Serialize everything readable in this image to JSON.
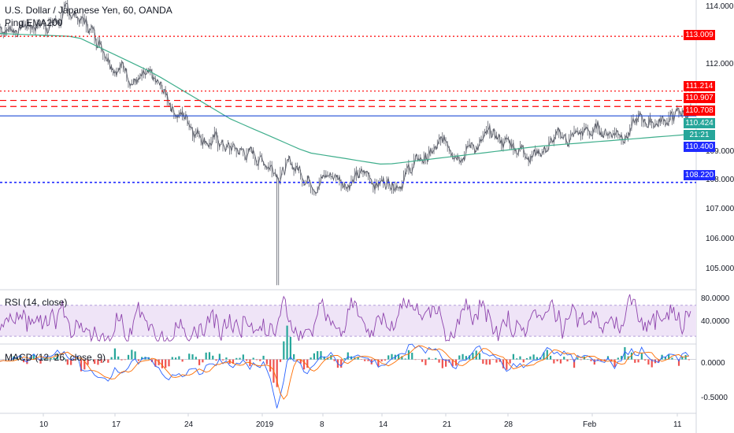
{
  "header": {
    "symbol_title": "U.S. Dollar / Japanese Yen, 60, OANDA",
    "ema_label": "Ping EMA200",
    "rsi_label": "RSI (14, close)",
    "macd_label": "MACD (12, 26, close, 9)"
  },
  "price_axis": {
    "ticks": [
      "114.000",
      "113.000",
      "112.000",
      "111.000",
      "110.000",
      "109.000",
      "108.000",
      "107.000",
      "106.000",
      "105.000"
    ]
  },
  "tags": {
    "t1": "113.009",
    "t2": "111.214",
    "t3": "110.907",
    "t4": "110.708",
    "t5": "110.424",
    "t6": "21:21",
    "t7": "110.400",
    "t8": "108.220"
  },
  "rsi_axis": {
    "ticks": [
      "80.0000",
      "40.0000"
    ]
  },
  "macd_axis": {
    "ticks": [
      "0.0000",
      "-0.5000"
    ]
  },
  "time_axis": {
    "labels": [
      "10",
      "17",
      "24",
      "2019",
      "8",
      "14",
      "21",
      "28",
      "Feb",
      "11"
    ]
  },
  "colors": {
    "red_level": "#ff0000",
    "blue_level": "#1f2bff",
    "price_line": "#1f4bd6",
    "ema": "#3fae8c",
    "rsi": "#8e44ad",
    "macd_line": "#2962ff",
    "signal_line": "#ff6d00",
    "hist_pos": "#26a69a",
    "hist_neg": "#ef5350"
  },
  "chart_data": [
    {
      "type": "line",
      "name_shown": "U.S. Dollar / Japanese Yen, 60, OANDA",
      "x": [
        "10",
        "17",
        "24",
        "2019",
        "8",
        "14",
        "21",
        "28",
        "Feb",
        "11"
      ],
      "series": [
        {
          "name": "",
          "values": [
            113.3,
            113.7,
            111.2,
            109.3,
            108.6,
            108.3,
            109.6,
            109.4,
            110.0,
            110.5
          ]
        },
        {
          "name": "Ping EMA200",
          "values": [
            113.1,
            113.0,
            111.8,
            110.3,
            109.2,
            108.8,
            109.1,
            109.4,
            109.6,
            109.8
          ]
        }
      ],
      "levels": [
        113.009,
        111.214,
        110.907,
        110.708,
        110.4,
        108.22
      ],
      "ylim": [
        104.7,
        114.2
      ]
    },
    {
      "type": "line",
      "name_shown": "RSI (14, close)",
      "ylim": [
        20,
        90
      ],
      "ticks": [
        80,
        40
      ]
    },
    {
      "type": "bar",
      "name_shown": "MACD (12, 26, close, 9)",
      "ylim": [
        -0.7,
        0.2
      ],
      "ticks": [
        0,
        -0.5
      ]
    }
  ]
}
